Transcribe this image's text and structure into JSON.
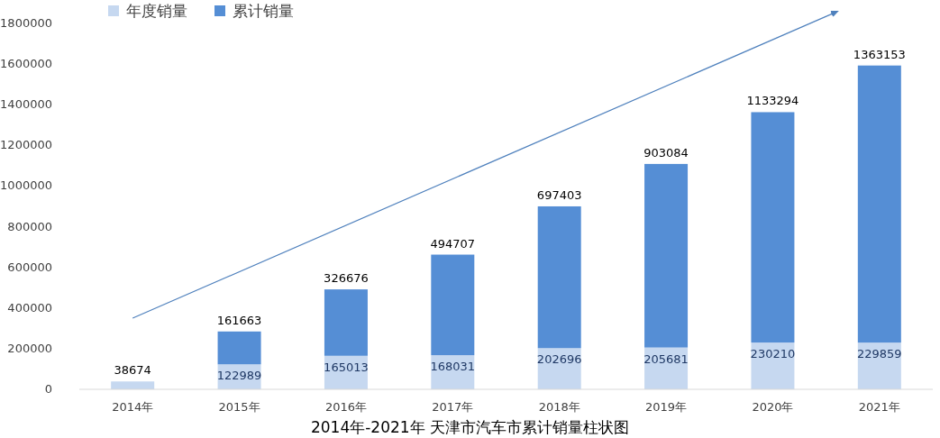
{
  "chart_data": {
    "type": "bar",
    "title": "2014年-2021年 天津市汽车市累计销量柱状图",
    "categories": [
      "2014年",
      "2015年",
      "2016年",
      "2017年",
      "2018年",
      "2019年",
      "2020年",
      "2021年"
    ],
    "stacked": true,
    "series": [
      {
        "name": "年度销量",
        "color": "#c6d8f0",
        "values": [
          38674,
          122989,
          165013,
          168031,
          202696,
          205681,
          230210,
          229859
        ]
      },
      {
        "name": "累计销量",
        "color": "#558ed5",
        "values": [
          null,
          161663,
          326676,
          494707,
          697403,
          903084,
          1133294,
          1363153
        ]
      }
    ],
    "ylim": [
      0,
      1800000
    ],
    "yticks": [
      0,
      200000,
      400000,
      600000,
      800000,
      1000000,
      1200000,
      1400000,
      1600000,
      1800000
    ],
    "data_labels": true,
    "grid": false,
    "legend": "top left"
  }
}
